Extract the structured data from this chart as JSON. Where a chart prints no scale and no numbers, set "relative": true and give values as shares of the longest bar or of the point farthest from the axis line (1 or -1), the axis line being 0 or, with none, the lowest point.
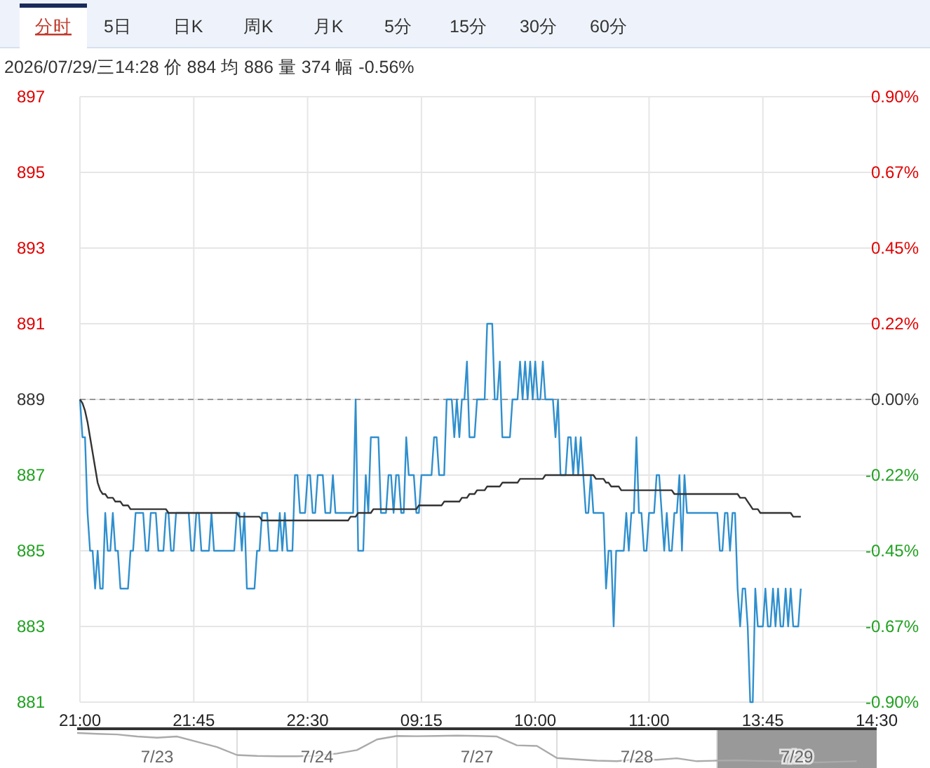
{
  "chart_data": [
    {
      "type": "line",
      "annotations": [
        "分时",
        "5日",
        "日K",
        "周K",
        "月K",
        "5分",
        "15分",
        "30分",
        "60分",
        "2026/07/29/三14:28  价 884  均 886  量 374  幅 -0.56%"
      ],
      "categories": [
        "21:00",
        null,
        null,
        null,
        null,
        null,
        null,
        null,
        null,
        null,
        null,
        null,
        null,
        null,
        null,
        null,
        null,
        null,
        null,
        null,
        null,
        null,
        null,
        null,
        null,
        null,
        null,
        null,
        null,
        null,
        null,
        null,
        null,
        null,
        null,
        null,
        null,
        null,
        null,
        null,
        null,
        null,
        null,
        null,
        null,
        "21:45",
        null,
        null,
        null,
        null,
        null,
        null,
        null,
        null,
        null,
        null,
        null,
        null,
        null,
        null,
        null,
        null,
        null,
        null,
        null,
        null,
        null,
        null,
        null,
        null,
        null,
        null,
        null,
        null,
        null,
        null,
        null,
        null,
        null,
        null,
        null,
        null,
        null,
        null,
        null,
        null,
        null,
        null,
        null,
        null,
        "22:30",
        null,
        null,
        null,
        null,
        null,
        null,
        null,
        null,
        null,
        null,
        null,
        null,
        null,
        null,
        null,
        null,
        null,
        null,
        null,
        null,
        null,
        null,
        null,
        null,
        null,
        null,
        null,
        null,
        null,
        null,
        null,
        null,
        null,
        null,
        null,
        null,
        null,
        null,
        null,
        null,
        null,
        null,
        null,
        null,
        "09:15",
        null,
        null,
        null,
        null,
        null,
        null,
        null,
        null,
        null,
        null,
        null,
        null,
        null,
        null,
        null,
        null,
        null,
        null,
        null,
        null,
        null,
        null,
        null,
        null,
        null,
        null,
        null,
        null,
        null,
        null,
        null,
        null,
        null,
        null,
        null,
        null,
        null,
        null,
        null,
        null,
        null,
        null,
        null,
        null,
        "10:00",
        null,
        null,
        null,
        null,
        null,
        null,
        null,
        null,
        null,
        null,
        null,
        null,
        null,
        null,
        null,
        null,
        null,
        null,
        null,
        null,
        null,
        null,
        null,
        null,
        null,
        null,
        null,
        null,
        null,
        null,
        null,
        null,
        null,
        null,
        null,
        null,
        null,
        null,
        null,
        null,
        null,
        null,
        null,
        null,
        "11:00",
        null,
        null,
        null,
        null,
        null,
        null,
        null,
        null,
        null,
        null,
        null,
        null,
        null,
        null,
        null,
        null,
        null,
        null,
        null,
        null,
        null,
        null,
        null,
        null,
        null,
        null,
        null,
        null,
        null,
        null,
        null,
        null,
        null,
        null,
        null,
        null,
        null,
        null,
        null,
        null,
        null,
        null,
        null,
        null,
        "13:45",
        null,
        null,
        null,
        null,
        null,
        null,
        null,
        null,
        null,
        null,
        null,
        null,
        null,
        null,
        null,
        null,
        null,
        null,
        null,
        null,
        null,
        null,
        null,
        null,
        null,
        null,
        null,
        null,
        null,
        null,
        null,
        null,
        null,
        null,
        null,
        null,
        null,
        null,
        null,
        null,
        null,
        null,
        null,
        null,
        "14:30"
      ],
      "ylim": [
        881,
        897
      ],
      "yticks": [
        881,
        883,
        885,
        887,
        889,
        891,
        893,
        895,
        897
      ],
      "y2lim": [
        -0.9,
        0.9
      ],
      "y2ticks": [
        {
          "value": -0.9,
          "label": "-0.90%"
        },
        {
          "value": -0.675,
          "label": "-0.67%"
        },
        {
          "value": -0.45,
          "label": "-0.45%"
        },
        {
          "value": -0.225,
          "label": "-0.22%"
        },
        {
          "value": 0,
          "label": "0.00%"
        },
        {
          "value": 0.225,
          "label": "0.22%"
        },
        {
          "value": 0.45,
          "label": "0.45%"
        },
        {
          "value": 0.675,
          "label": "0.67%"
        },
        {
          "value": 0.9,
          "label": "0.90%"
        }
      ],
      "grid": true,
      "ref_lines": [
        {
          "axis": "y",
          "value": 889,
          "color": "#999999",
          "line_style": "dashed"
        }
      ],
      "series": [
        {
          "color": "#2f8fce",
          "values": [
            889,
            888,
            888,
            886,
            885,
            885,
            884,
            885,
            884,
            884,
            886,
            885,
            885,
            886,
            885,
            885,
            884,
            884,
            884,
            884,
            885,
            885,
            886,
            886,
            886,
            886,
            885,
            885,
            886,
            886,
            886,
            885,
            885,
            885,
            886,
            886,
            885,
            885,
            886,
            886,
            886,
            886,
            886,
            886,
            885,
            885,
            886,
            886,
            885,
            885,
            885,
            885,
            886,
            885,
            885,
            885,
            885,
            885,
            885,
            885,
            885,
            885,
            886,
            886,
            885,
            886,
            884,
            884,
            884,
            884,
            885,
            885,
            886,
            886,
            886,
            885,
            885,
            885,
            885,
            886,
            885,
            886,
            885,
            885,
            885,
            887,
            887,
            886,
            886,
            886,
            887,
            887,
            886,
            886,
            887,
            887,
            887,
            886,
            886,
            886,
            887,
            886,
            886,
            886,
            886,
            886,
            886,
            886,
            886,
            889,
            885,
            885,
            885,
            887,
            886,
            888,
            888,
            888,
            888,
            886,
            886,
            886,
            887,
            887,
            886,
            887,
            887,
            886,
            886,
            888,
            887,
            887,
            887,
            886,
            886,
            887,
            887,
            887,
            887,
            887,
            888,
            888,
            887,
            887,
            887,
            889,
            889,
            889,
            888,
            889,
            888,
            889,
            889,
            890,
            888,
            888,
            888,
            889,
            889,
            889,
            889,
            891,
            891,
            891,
            889,
            889,
            890,
            888,
            888,
            888,
            888,
            889,
            889,
            889,
            890,
            889,
            890,
            889,
            890,
            889,
            890,
            889,
            889,
            890,
            889,
            889,
            889,
            889,
            888,
            889,
            887,
            887,
            887,
            888,
            888,
            887,
            888,
            887,
            888,
            887,
            886,
            886,
            887,
            886,
            886,
            886,
            886,
            886,
            884,
            885,
            885,
            883,
            885,
            885,
            885,
            885,
            886,
            885,
            886,
            886,
            888,
            886,
            886,
            885,
            885,
            886,
            886,
            886,
            887,
            887,
            886,
            885,
            886,
            885,
            885,
            886,
            886,
            887,
            885,
            887,
            886,
            886,
            886,
            886,
            886,
            886,
            886,
            886,
            886,
            886,
            886,
            886,
            886,
            885,
            885,
            886,
            886,
            885,
            886,
            886,
            884,
            883,
            884,
            884,
            883,
            881,
            881,
            884,
            883,
            883,
            883,
            884,
            883,
            883,
            884,
            883,
            884,
            883,
            883,
            884,
            883,
            884,
            883,
            883,
            883,
            884,
            null,
            null,
            null,
            null,
            null,
            null,
            null,
            null,
            null,
            null,
            null,
            null,
            null,
            null,
            null,
            null,
            null,
            null,
            null,
            null,
            null,
            null,
            null,
            null,
            null,
            null,
            null,
            null,
            null,
            null
          ]
        },
        {
          "color": "#333333",
          "values": [
            889.0,
            888.9,
            888.7,
            888.4,
            888.0,
            887.6,
            887.2,
            886.8,
            886.6,
            886.5,
            886.5,
            886.4,
            886.4,
            886.4,
            886.3,
            886.3,
            886.3,
            886.2,
            886.2,
            886.2,
            886.1,
            886.1,
            886.1,
            886.1,
            886.1,
            886.1,
            886.1,
            886.1,
            886.1,
            886.1,
            886.1,
            886.1,
            886.1,
            886.1,
            886.1,
            886.0,
            886.0,
            886.0,
            886.0,
            886.0,
            886.0,
            886.0,
            886.0,
            886.0,
            886.0,
            886.0,
            886.0,
            886.0,
            886.0,
            886.0,
            886.0,
            886.0,
            886.0,
            886.0,
            886.0,
            886.0,
            886.0,
            886.0,
            886.0,
            886.0,
            886.0,
            886.0,
            886.0,
            885.9,
            885.9,
            885.9,
            885.9,
            885.9,
            885.9,
            885.9,
            885.9,
            885.9,
            885.8,
            885.8,
            885.8,
            885.8,
            885.8,
            885.8,
            885.8,
            885.8,
            885.8,
            885.8,
            885.8,
            885.8,
            885.8,
            885.8,
            885.8,
            885.8,
            885.8,
            885.8,
            885.8,
            885.8,
            885.8,
            885.8,
            885.8,
            885.8,
            885.8,
            885.8,
            885.8,
            885.8,
            885.8,
            885.8,
            885.8,
            885.8,
            885.8,
            885.8,
            885.8,
            885.9,
            885.9,
            885.9,
            886.0,
            886.0,
            886.0,
            886.0,
            886.0,
            886.0,
            886.1,
            886.1,
            886.1,
            886.1,
            886.1,
            886.1,
            886.1,
            886.1,
            886.1,
            886.1,
            886.1,
            886.1,
            886.1,
            886.1,
            886.1,
            886.1,
            886.1,
            886.1,
            886.2,
            886.2,
            886.2,
            886.2,
            886.2,
            886.2,
            886.2,
            886.2,
            886.2,
            886.2,
            886.3,
            886.3,
            886.3,
            886.3,
            886.3,
            886.3,
            886.3,
            886.4,
            886.4,
            886.4,
            886.5,
            886.5,
            886.5,
            886.6,
            886.6,
            886.6,
            886.6,
            886.7,
            886.7,
            886.7,
            886.7,
            886.7,
            886.7,
            886.8,
            886.8,
            886.8,
            886.8,
            886.8,
            886.8,
            886.8,
            886.9,
            886.9,
            886.9,
            886.9,
            886.9,
            886.9,
            886.9,
            886.9,
            886.9,
            886.9,
            887.0,
            887.0,
            887.0,
            887.0,
            887.0,
            887.0,
            887.0,
            887.0,
            887.0,
            887.0,
            887.0,
            887.0,
            887.0,
            887.0,
            887.0,
            887.0,
            887.0,
            887.0,
            887.0,
            887.0,
            886.9,
            886.9,
            886.9,
            886.9,
            886.8,
            886.8,
            886.7,
            886.7,
            886.7,
            886.7,
            886.6,
            886.6,
            886.6,
            886.6,
            886.6,
            886.6,
            886.6,
            886.6,
            886.6,
            886.6,
            886.6,
            886.6,
            886.6,
            886.6,
            886.6,
            886.6,
            886.6,
            886.6,
            886.6,
            886.6,
            886.6,
            886.5,
            886.5,
            886.5,
            886.5,
            886.5,
            886.5,
            886.5,
            886.5,
            886.5,
            886.5,
            886.5,
            886.5,
            886.5,
            886.5,
            886.5,
            886.5,
            886.5,
            886.5,
            886.5,
            886.5,
            886.5,
            886.5,
            886.5,
            886.5,
            886.5,
            886.5,
            886.4,
            886.4,
            886.4,
            886.3,
            886.2,
            886.1,
            886.1,
            886.1,
            886.0,
            886.0,
            886.0,
            886.0,
            886.0,
            886.0,
            886.0,
            886.0,
            886.0,
            886.0,
            886.0,
            886.0,
            886.0,
            885.9,
            885.9,
            885.9,
            885.9,
            null,
            null,
            null,
            null,
            null,
            null,
            null,
            null,
            null,
            null,
            null,
            null,
            null,
            null,
            null,
            null,
            null,
            null,
            null,
            null,
            null,
            null,
            null,
            null,
            null,
            null,
            null,
            null,
            null,
            null
          ]
        }
      ]
    },
    {
      "type": "line",
      "relative": true,
      "grid": "x",
      "categories": [
        null,
        null,
        null,
        null,
        "7/23",
        null,
        null,
        null,
        null,
        null,
        null,
        null,
        "7/24",
        null,
        null,
        null,
        null,
        null,
        null,
        null,
        "7/27",
        null,
        null,
        null,
        null,
        null,
        null,
        null,
        "7/28",
        null,
        null,
        null,
        null,
        null,
        null,
        null,
        "7/29",
        null,
        null,
        null,
        null
      ],
      "series": [
        {
          "color": "#aaaaaa",
          "values": [
            1.0,
            0.97,
            0.95,
            0.88,
            0.84,
            0.88,
            0.7,
            0.52,
            0.25,
            0.22,
            0.21,
            0.21,
            0.23,
            0.3,
            0.42,
            0.78,
            0.9,
            0.89,
            0.9,
            0.91,
            0.9,
            0.88,
            0.58,
            0.56,
            0.15,
            0.1,
            0.06,
            0.04,
            0.1,
            0.09,
            0.14,
            0.04,
            0.06,
            0.07,
            0.05,
            0.04,
            0.03,
            0,
            0.02,
            0.04,
            null
          ]
        }
      ]
    }
  ]
}
